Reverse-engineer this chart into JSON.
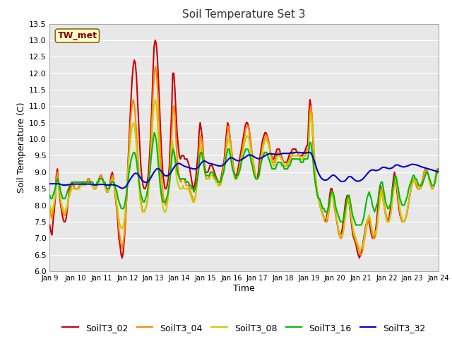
{
  "title": "Soil Temperature Set 3",
  "xlabel": "Time",
  "ylabel": "Soil Temperature (C)",
  "ylim": [
    6.0,
    13.5
  ],
  "yticks": [
    6.0,
    6.5,
    7.0,
    7.5,
    8.0,
    8.5,
    9.0,
    9.5,
    10.0,
    10.5,
    11.0,
    11.5,
    12.0,
    12.5,
    13.0,
    13.5
  ],
  "x_labels": [
    "Jan 9",
    "Jan 10",
    "Jan 11",
    "Jan 12",
    "Jan 13",
    "Jan 14",
    "Jan 15",
    "Jan 16",
    "Jan 17",
    "Jan 18",
    "Jan 19",
    "Jan 20",
    "Jan 21",
    "Jan 22",
    "Jan 23",
    "Jan 24"
  ],
  "annotation": "TW_met",
  "annotation_color": "#8b0000",
  "annotation_bg": "#ffffcc",
  "annotation_edge": "#8b6914",
  "fig_bg_color": "#ffffff",
  "plot_bg_color": "#e8e8e8",
  "grid_color": "#ffffff",
  "colors": {
    "SoilT3_02": "#cc0000",
    "SoilT3_04": "#ff8800",
    "SoilT3_08": "#cccc00",
    "SoilT3_16": "#00bb00",
    "SoilT3_32": "#0000cc"
  },
  "SoilT3_02": [
    7.4,
    7.2,
    7.1,
    7.5,
    7.8,
    8.2,
    8.9,
    9.1,
    8.7,
    8.3,
    8.0,
    7.8,
    7.6,
    7.5,
    7.5,
    7.6,
    7.9,
    8.2,
    8.5,
    8.6,
    8.7,
    8.6,
    8.6,
    8.5,
    8.5,
    8.5,
    8.5,
    8.6,
    8.6,
    8.6,
    8.7,
    8.7,
    8.6,
    8.7,
    8.7,
    8.8,
    8.8,
    8.7,
    8.6,
    8.6,
    8.5,
    8.5,
    8.5,
    8.6,
    8.7,
    8.8,
    8.9,
    8.9,
    8.8,
    8.7,
    8.6,
    8.5,
    8.4,
    8.4,
    8.5,
    8.7,
    8.9,
    9.0,
    8.8,
    8.5,
    8.2,
    7.9,
    7.5,
    7.0,
    6.8,
    6.5,
    6.4,
    6.6,
    7.0,
    7.5,
    8.2,
    9.0,
    9.8,
    10.5,
    11.2,
    11.8,
    12.2,
    12.4,
    12.3,
    11.9,
    11.2,
    10.5,
    9.8,
    9.2,
    8.8,
    8.6,
    8.5,
    8.5,
    8.6,
    8.7,
    9.0,
    9.5,
    10.2,
    11.0,
    12.0,
    12.8,
    13.0,
    12.9,
    12.5,
    11.8,
    11.0,
    10.2,
    9.5,
    9.0,
    8.7,
    8.5,
    8.5,
    8.6,
    8.8,
    9.2,
    10.0,
    10.8,
    12.0,
    12.0,
    11.5,
    10.8,
    10.2,
    9.8,
    9.5,
    9.4,
    9.5,
    9.5,
    9.5,
    9.4,
    9.4,
    9.4,
    9.3,
    9.2,
    9.0,
    8.8,
    8.6,
    8.5,
    8.6,
    8.8,
    9.2,
    9.5,
    10.2,
    10.5,
    10.3,
    10.0,
    9.5,
    9.2,
    9.0,
    9.0,
    9.0,
    9.1,
    9.2,
    9.2,
    9.2,
    9.1,
    9.0,
    8.9,
    8.8,
    8.7,
    8.7,
    8.7,
    8.8,
    9.0,
    9.2,
    9.4,
    9.8,
    10.2,
    10.5,
    10.4,
    10.1,
    9.8,
    9.5,
    9.2,
    9.0,
    8.9,
    8.9,
    9.0,
    9.2,
    9.4,
    9.6,
    9.8,
    10.0,
    10.2,
    10.4,
    10.5,
    10.5,
    10.4,
    10.2,
    9.9,
    9.6,
    9.3,
    9.1,
    8.9,
    8.8,
    8.8,
    9.0,
    9.3,
    9.6,
    9.8,
    10.0,
    10.1,
    10.2,
    10.2,
    10.1,
    10.0,
    9.8,
    9.6,
    9.5,
    9.4,
    9.4,
    9.5,
    9.6,
    9.7,
    9.7,
    9.7,
    9.6,
    9.5,
    9.4,
    9.3,
    9.3,
    9.3,
    9.3,
    9.4,
    9.5,
    9.6,
    9.6,
    9.7,
    9.7,
    9.7,
    9.7,
    9.6,
    9.6,
    9.5,
    9.5,
    9.5,
    9.5,
    9.6,
    9.6,
    9.7,
    9.8,
    9.8,
    10.8,
    11.2,
    11.0,
    10.5,
    9.8,
    9.2,
    8.8,
    8.5,
    8.3,
    8.2,
    8.0,
    7.9,
    7.8,
    7.7,
    7.6,
    7.5,
    7.6,
    7.8,
    8.0,
    8.3,
    8.5,
    8.5,
    8.3,
    8.0,
    7.8,
    7.6,
    7.4,
    7.2,
    7.1,
    7.1,
    7.2,
    7.4,
    7.7,
    8.0,
    8.2,
    8.3,
    8.2,
    8.0,
    7.7,
    7.4,
    7.1,
    7.0,
    6.9,
    6.8,
    6.6,
    6.5,
    6.4,
    6.5,
    6.6,
    6.8,
    7.0,
    7.2,
    7.4,
    7.5,
    7.6,
    7.5,
    7.3,
    7.1,
    7.0,
    7.0,
    7.1,
    7.3,
    7.6,
    8.0,
    8.4,
    8.6,
    8.5,
    8.3,
    8.1,
    7.9,
    7.7,
    7.6,
    7.5,
    7.6,
    7.8,
    8.1,
    8.5,
    8.8,
    9.0,
    8.8,
    8.5,
    8.2,
    7.9,
    7.7,
    7.6,
    7.5,
    7.5,
    7.5,
    7.6,
    7.7,
    7.9,
    8.1,
    8.3,
    8.5,
    8.7,
    8.8,
    8.8,
    8.7,
    8.6,
    8.5,
    8.5,
    8.5,
    8.6,
    8.7,
    8.8,
    9.0,
    9.1,
    9.1,
    9.0,
    8.9,
    8.7,
    8.6,
    8.5,
    8.5,
    8.6,
    8.8,
    9.0,
    9.1,
    9.1
  ],
  "SoilT3_04": [
    7.9,
    7.7,
    7.6,
    7.8,
    8.0,
    8.3,
    8.8,
    9.0,
    8.7,
    8.4,
    8.1,
    7.9,
    7.8,
    7.7,
    7.7,
    7.8,
    8.0,
    8.2,
    8.4,
    8.5,
    8.6,
    8.6,
    8.6,
    8.5,
    8.5,
    8.5,
    8.5,
    8.6,
    8.6,
    8.6,
    8.7,
    8.7,
    8.6,
    8.7,
    8.7,
    8.8,
    8.8,
    8.7,
    8.6,
    8.6,
    8.5,
    8.5,
    8.5,
    8.6,
    8.7,
    8.8,
    8.9,
    8.9,
    8.8,
    8.7,
    8.6,
    8.5,
    8.4,
    8.4,
    8.5,
    8.7,
    8.8,
    8.9,
    8.8,
    8.5,
    8.2,
    7.9,
    7.6,
    7.2,
    7.0,
    6.8,
    6.7,
    6.9,
    7.2,
    7.7,
    8.3,
    9.0,
    9.7,
    10.3,
    10.8,
    11.1,
    11.2,
    11.0,
    10.6,
    10.1,
    9.5,
    8.9,
    8.4,
    8.1,
    7.9,
    7.8,
    7.8,
    7.9,
    8.0,
    8.2,
    8.6,
    9.2,
    9.9,
    10.7,
    11.5,
    12.0,
    12.2,
    12.0,
    11.5,
    10.8,
    10.0,
    9.2,
    8.7,
    8.3,
    8.1,
    8.0,
    8.1,
    8.2,
    8.5,
    8.9,
    9.5,
    10.3,
    11.0,
    11.0,
    10.5,
    9.8,
    9.3,
    9.0,
    8.8,
    8.7,
    8.8,
    8.8,
    8.8,
    8.7,
    8.6,
    8.6,
    8.6,
    8.5,
    8.4,
    8.3,
    8.2,
    8.1,
    8.2,
    8.4,
    8.8,
    9.1,
    9.8,
    10.1,
    10.0,
    9.7,
    9.3,
    9.0,
    8.8,
    8.8,
    8.8,
    8.9,
    9.0,
    9.0,
    9.0,
    8.9,
    8.8,
    8.8,
    8.7,
    8.6,
    8.6,
    8.7,
    8.8,
    9.0,
    9.2,
    9.4,
    9.7,
    10.1,
    10.4,
    10.3,
    10.0,
    9.7,
    9.4,
    9.1,
    8.9,
    8.8,
    8.8,
    8.9,
    9.1,
    9.3,
    9.5,
    9.7,
    9.9,
    10.1,
    10.3,
    10.4,
    10.4,
    10.3,
    10.1,
    9.8,
    9.5,
    9.3,
    9.1,
    8.9,
    8.8,
    8.8,
    8.9,
    9.2,
    9.5,
    9.7,
    9.9,
    10.0,
    10.1,
    10.1,
    10.0,
    9.9,
    9.7,
    9.5,
    9.4,
    9.3,
    9.3,
    9.4,
    9.5,
    9.6,
    9.6,
    9.6,
    9.5,
    9.4,
    9.3,
    9.2,
    9.2,
    9.2,
    9.3,
    9.3,
    9.4,
    9.5,
    9.5,
    9.6,
    9.6,
    9.6,
    9.6,
    9.6,
    9.5,
    9.5,
    9.4,
    9.4,
    9.4,
    9.5,
    9.5,
    9.6,
    9.7,
    9.7,
    10.7,
    11.0,
    10.8,
    10.3,
    9.7,
    9.1,
    8.7,
    8.4,
    8.2,
    8.1,
    7.9,
    7.8,
    7.7,
    7.6,
    7.5,
    7.5,
    7.5,
    7.7,
    7.9,
    8.2,
    8.4,
    8.4,
    8.2,
    7.9,
    7.7,
    7.5,
    7.3,
    7.1,
    7.0,
    7.0,
    7.1,
    7.3,
    7.6,
    7.9,
    8.1,
    8.2,
    8.1,
    7.9,
    7.6,
    7.3,
    7.1,
    7.0,
    6.9,
    6.8,
    6.7,
    6.6,
    6.5,
    6.5,
    6.6,
    6.8,
    7.0,
    7.2,
    7.4,
    7.5,
    7.6,
    7.5,
    7.3,
    7.1,
    7.0,
    7.0,
    7.1,
    7.3,
    7.6,
    8.0,
    8.3,
    8.5,
    8.4,
    8.2,
    8.0,
    7.8,
    7.6,
    7.5,
    7.5,
    7.6,
    7.8,
    8.1,
    8.4,
    8.7,
    8.9,
    8.7,
    8.4,
    8.1,
    7.8,
    7.6,
    7.5,
    7.5,
    7.5,
    7.6,
    7.7,
    7.9,
    8.1,
    8.3,
    8.5,
    8.7,
    8.8,
    8.8,
    8.7,
    8.6,
    8.5,
    8.5,
    8.5,
    8.6,
    8.7,
    8.8,
    9.0,
    9.1,
    9.1,
    9.0,
    8.9,
    8.7,
    8.6,
    8.5,
    8.5,
    8.6,
    8.8,
    9.0,
    9.1,
    9.1
  ],
  "SoilT3_08": [
    8.0,
    7.9,
    7.8,
    7.9,
    8.1,
    8.3,
    8.6,
    8.8,
    8.6,
    8.4,
    8.2,
    8.0,
    7.9,
    7.8,
    7.8,
    7.9,
    8.0,
    8.2,
    8.3,
    8.4,
    8.5,
    8.5,
    8.5,
    8.5,
    8.5,
    8.5,
    8.5,
    8.5,
    8.6,
    8.6,
    8.6,
    8.7,
    8.6,
    8.7,
    8.7,
    8.7,
    8.7,
    8.7,
    8.6,
    8.6,
    8.5,
    8.5,
    8.5,
    8.6,
    8.7,
    8.7,
    8.8,
    8.8,
    8.8,
    8.7,
    8.6,
    8.5,
    8.4,
    8.4,
    8.5,
    8.6,
    8.7,
    8.8,
    8.7,
    8.5,
    8.3,
    8.0,
    7.8,
    7.5,
    7.4,
    7.3,
    7.3,
    7.4,
    7.6,
    8.0,
    8.5,
    9.0,
    9.5,
    9.9,
    10.2,
    10.4,
    10.5,
    10.4,
    10.1,
    9.7,
    9.2,
    8.7,
    8.2,
    8.0,
    7.8,
    7.8,
    7.8,
    7.9,
    8.0,
    8.2,
    8.6,
    9.1,
    9.6,
    10.2,
    10.8,
    11.1,
    11.2,
    11.0,
    10.5,
    9.8,
    9.1,
    8.5,
    8.1,
    7.9,
    7.8,
    7.8,
    7.9,
    8.1,
    8.4,
    8.8,
    9.4,
    10.0,
    9.8,
    9.5,
    9.2,
    8.9,
    8.7,
    8.6,
    8.5,
    8.5,
    8.5,
    8.6,
    8.5,
    8.5,
    8.5,
    8.5,
    8.5,
    8.4,
    8.3,
    8.2,
    8.1,
    8.1,
    8.2,
    8.4,
    8.7,
    9.0,
    9.5,
    9.8,
    9.7,
    9.5,
    9.2,
    9.0,
    8.8,
    8.8,
    8.8,
    8.8,
    8.9,
    8.9,
    8.9,
    8.8,
    8.8,
    8.7,
    8.7,
    8.6,
    8.6,
    8.6,
    8.7,
    8.9,
    9.1,
    9.2,
    9.5,
    9.8,
    10.0,
    10.0,
    9.8,
    9.5,
    9.2,
    9.0,
    8.8,
    8.8,
    8.8,
    8.9,
    9.0,
    9.2,
    9.4,
    9.6,
    9.7,
    9.9,
    10.0,
    10.1,
    10.1,
    10.0,
    9.8,
    9.6,
    9.4,
    9.2,
    9.0,
    8.9,
    8.8,
    8.8,
    8.9,
    9.1,
    9.4,
    9.6,
    9.8,
    9.9,
    10.0,
    10.0,
    9.9,
    9.8,
    9.6,
    9.4,
    9.3,
    9.2,
    9.2,
    9.3,
    9.4,
    9.5,
    9.5,
    9.5,
    9.4,
    9.4,
    9.3,
    9.2,
    9.2,
    9.2,
    9.2,
    9.3,
    9.3,
    9.4,
    9.5,
    9.5,
    9.5,
    9.5,
    9.5,
    9.5,
    9.5,
    9.5,
    9.4,
    9.4,
    9.4,
    9.5,
    9.5,
    9.5,
    9.6,
    9.6,
    10.5,
    10.8,
    10.6,
    10.1,
    9.5,
    9.0,
    8.6,
    8.3,
    8.2,
    8.1,
    7.9,
    7.8,
    7.7,
    7.6,
    7.6,
    7.6,
    7.6,
    7.8,
    8.0,
    8.2,
    8.4,
    8.3,
    8.1,
    7.9,
    7.7,
    7.5,
    7.3,
    7.2,
    7.1,
    7.1,
    7.1,
    7.3,
    7.5,
    7.8,
    8.1,
    8.2,
    8.1,
    7.9,
    7.6,
    7.4,
    7.2,
    7.1,
    7.0,
    6.9,
    6.8,
    6.7,
    6.7,
    6.7,
    6.7,
    6.9,
    7.1,
    7.3,
    7.5,
    7.6,
    7.7,
    7.6,
    7.4,
    7.2,
    7.1,
    7.1,
    7.2,
    7.3,
    7.6,
    7.9,
    8.2,
    8.4,
    8.3,
    8.1,
    7.9,
    7.7,
    7.5,
    7.5,
    7.5,
    7.6,
    7.8,
    8.1,
    8.4,
    8.7,
    8.8,
    8.7,
    8.4,
    8.1,
    7.9,
    7.7,
    7.6,
    7.5,
    7.5,
    7.6,
    7.7,
    7.9,
    8.1,
    8.3,
    8.5,
    8.6,
    8.7,
    8.8,
    8.7,
    8.7,
    8.6,
    8.5,
    8.5,
    8.5,
    8.6,
    8.7,
    8.8,
    9.0,
    9.0,
    9.0,
    8.9,
    8.7,
    8.6,
    8.5,
    8.5,
    8.6,
    8.8,
    9.0,
    9.0,
    9.0
  ],
  "SoilT3_16": [
    8.3,
    8.2,
    8.2,
    8.3,
    8.4,
    8.5,
    8.7,
    8.8,
    8.7,
    8.6,
    8.4,
    8.3,
    8.2,
    8.2,
    8.2,
    8.3,
    8.4,
    8.5,
    8.6,
    8.6,
    8.7,
    8.7,
    8.7,
    8.7,
    8.7,
    8.7,
    8.7,
    8.7,
    8.7,
    8.7,
    8.7,
    8.7,
    8.7,
    8.7,
    8.7,
    8.7,
    8.7,
    8.7,
    8.7,
    8.7,
    8.6,
    8.6,
    8.6,
    8.7,
    8.7,
    8.8,
    8.8,
    8.8,
    8.8,
    8.7,
    8.7,
    8.6,
    8.5,
    8.5,
    8.5,
    8.6,
    8.7,
    8.7,
    8.7,
    8.6,
    8.5,
    8.4,
    8.2,
    8.1,
    8.0,
    7.9,
    7.9,
    7.9,
    8.0,
    8.2,
    8.4,
    8.7,
    9.0,
    9.2,
    9.4,
    9.5,
    9.6,
    9.6,
    9.5,
    9.3,
    9.0,
    8.7,
    8.5,
    8.3,
    8.2,
    8.1,
    8.1,
    8.2,
    8.3,
    8.5,
    8.7,
    9.0,
    9.4,
    9.7,
    10.0,
    10.2,
    10.1,
    9.9,
    9.5,
    9.1,
    8.7,
    8.4,
    8.2,
    8.1,
    8.1,
    8.1,
    8.2,
    8.3,
    8.5,
    8.7,
    9.1,
    9.5,
    9.7,
    9.6,
    9.4,
    9.2,
    9.0,
    8.9,
    8.8,
    8.8,
    8.8,
    8.8,
    8.8,
    8.8,
    8.7,
    8.7,
    8.7,
    8.6,
    8.6,
    8.5,
    8.5,
    8.4,
    8.5,
    8.6,
    8.8,
    9.0,
    9.4,
    9.6,
    9.6,
    9.4,
    9.2,
    9.0,
    8.9,
    8.9,
    8.9,
    8.9,
    9.0,
    9.0,
    9.0,
    8.9,
    8.9,
    8.8,
    8.8,
    8.7,
    8.7,
    8.7,
    8.8,
    8.9,
    9.0,
    9.2,
    9.4,
    9.6,
    9.7,
    9.7,
    9.5,
    9.3,
    9.1,
    9.0,
    8.9,
    8.8,
    8.9,
    8.9,
    9.0,
    9.1,
    9.3,
    9.4,
    9.5,
    9.6,
    9.7,
    9.7,
    9.7,
    9.6,
    9.5,
    9.3,
    9.2,
    9.0,
    8.9,
    8.8,
    8.8,
    8.8,
    8.9,
    9.1,
    9.3,
    9.4,
    9.5,
    9.6,
    9.6,
    9.6,
    9.5,
    9.4,
    9.3,
    9.2,
    9.1,
    9.1,
    9.1,
    9.1,
    9.2,
    9.3,
    9.3,
    9.3,
    9.3,
    9.2,
    9.2,
    9.1,
    9.1,
    9.1,
    9.1,
    9.2,
    9.2,
    9.3,
    9.4,
    9.4,
    9.4,
    9.4,
    9.4,
    9.4,
    9.4,
    9.4,
    9.3,
    9.3,
    9.3,
    9.4,
    9.4,
    9.4,
    9.4,
    9.5,
    9.9,
    9.9,
    9.7,
    9.4,
    9.0,
    8.7,
    8.5,
    8.3,
    8.2,
    8.2,
    8.1,
    8.0,
    7.9,
    7.9,
    7.8,
    7.8,
    7.8,
    7.9,
    8.1,
    8.3,
    8.4,
    8.4,
    8.3,
    8.1,
    7.9,
    7.8,
    7.7,
    7.6,
    7.5,
    7.5,
    7.5,
    7.6,
    7.8,
    8.0,
    8.2,
    8.3,
    8.3,
    8.1,
    7.9,
    7.7,
    7.6,
    7.5,
    7.4,
    7.4,
    7.4,
    7.4,
    7.4,
    7.4,
    7.5,
    7.6,
    7.8,
    8.0,
    8.2,
    8.3,
    8.4,
    8.3,
    8.2,
    8.0,
    7.9,
    7.8,
    7.9,
    8.0,
    8.1,
    8.4,
    8.6,
    8.7,
    8.7,
    8.5,
    8.3,
    8.1,
    8.0,
    7.9,
    7.9,
    8.0,
    8.1,
    8.4,
    8.6,
    8.8,
    8.9,
    8.8,
    8.6,
    8.4,
    8.2,
    8.1,
    8.0,
    8.0,
    8.0,
    8.1,
    8.2,
    8.3,
    8.5,
    8.6,
    8.7,
    8.8,
    8.9,
    8.9,
    8.8,
    8.8,
    8.7,
    8.6,
    8.6,
    8.6,
    8.6,
    8.7,
    8.8,
    8.9,
    9.0,
    9.0,
    8.9,
    8.8,
    8.7,
    8.6,
    8.6,
    8.6,
    8.7,
    8.9,
    9.0,
    9.1
  ],
  "SoilT3_32": [
    8.65,
    8.65,
    8.65,
    8.65,
    8.65,
    8.65,
    8.65,
    8.65,
    8.65,
    8.64,
    8.63,
    8.62,
    8.61,
    8.61,
    8.61,
    8.61,
    8.62,
    8.62,
    8.63,
    8.63,
    8.64,
    8.64,
    8.64,
    8.64,
    8.64,
    8.64,
    8.64,
    8.64,
    8.64,
    8.64,
    8.64,
    8.64,
    8.64,
    8.64,
    8.64,
    8.64,
    8.64,
    8.64,
    8.63,
    8.63,
    8.62,
    8.62,
    8.62,
    8.62,
    8.63,
    8.63,
    8.63,
    8.63,
    8.63,
    8.63,
    8.62,
    8.62,
    8.61,
    8.61,
    8.61,
    8.62,
    8.62,
    8.62,
    8.62,
    8.61,
    8.6,
    8.59,
    8.57,
    8.55,
    8.53,
    8.52,
    8.51,
    8.52,
    8.54,
    8.57,
    8.62,
    8.67,
    8.73,
    8.79,
    8.84,
    8.89,
    8.93,
    8.96,
    8.97,
    8.96,
    8.93,
    8.89,
    8.84,
    8.79,
    8.75,
    8.72,
    8.7,
    8.69,
    8.7,
    8.72,
    8.75,
    8.8,
    8.86,
    8.92,
    8.98,
    9.03,
    9.07,
    9.1,
    9.11,
    9.1,
    9.07,
    9.03,
    8.98,
    8.94,
    8.91,
    8.89,
    8.89,
    8.9,
    8.92,
    8.95,
    9.0,
    9.06,
    9.12,
    9.17,
    9.21,
    9.24,
    9.26,
    9.27,
    9.26,
    9.24,
    9.22,
    9.2,
    9.18,
    9.17,
    9.16,
    9.15,
    9.14,
    9.13,
    9.12,
    9.11,
    9.1,
    9.1,
    9.1,
    9.11,
    9.14,
    9.17,
    9.22,
    9.27,
    9.31,
    9.33,
    9.34,
    9.33,
    9.31,
    9.29,
    9.27,
    9.26,
    9.26,
    9.25,
    9.24,
    9.23,
    9.22,
    9.21,
    9.2,
    9.19,
    9.19,
    9.19,
    9.2,
    9.22,
    9.25,
    9.28,
    9.32,
    9.36,
    9.4,
    9.43,
    9.44,
    9.44,
    9.42,
    9.4,
    9.38,
    9.36,
    9.35,
    9.35,
    9.36,
    9.37,
    9.39,
    9.41,
    9.43,
    9.45,
    9.48,
    9.5,
    9.52,
    9.52,
    9.52,
    9.51,
    9.49,
    9.47,
    9.45,
    9.43,
    9.42,
    9.41,
    9.41,
    9.42,
    9.44,
    9.46,
    9.48,
    9.5,
    9.52,
    9.54,
    9.55,
    9.56,
    9.56,
    9.56,
    9.55,
    9.55,
    9.54,
    9.54,
    9.54,
    9.54,
    9.55,
    9.55,
    9.56,
    9.57,
    9.57,
    9.57,
    9.57,
    9.57,
    9.57,
    9.57,
    9.58,
    9.58,
    9.58,
    9.59,
    9.59,
    9.6,
    9.6,
    9.6,
    9.6,
    9.59,
    9.59,
    9.59,
    9.58,
    9.58,
    9.59,
    9.59,
    9.6,
    9.6,
    9.6,
    9.55,
    9.48,
    9.4,
    9.3,
    9.19,
    9.09,
    9.0,
    8.93,
    8.87,
    8.82,
    8.79,
    8.77,
    8.76,
    8.76,
    8.77,
    8.79,
    8.82,
    8.85,
    8.88,
    8.91,
    8.91,
    8.9,
    8.87,
    8.84,
    8.8,
    8.77,
    8.74,
    8.72,
    8.72,
    8.72,
    8.73,
    8.76,
    8.8,
    8.84,
    8.87,
    8.87,
    8.86,
    8.83,
    8.8,
    8.77,
    8.75,
    8.73,
    8.73,
    8.73,
    8.74,
    8.76,
    8.78,
    8.81,
    8.85,
    8.89,
    8.93,
    8.97,
    9.01,
    9.04,
    9.06,
    9.07,
    9.07,
    9.06,
    9.05,
    9.05,
    9.06,
    9.07,
    9.09,
    9.12,
    9.14,
    9.15,
    9.15,
    9.14,
    9.13,
    9.12,
    9.11,
    9.11,
    9.12,
    9.13,
    9.15,
    9.18,
    9.21,
    9.22,
    9.22,
    9.21,
    9.19,
    9.18,
    9.17,
    9.16,
    9.16,
    9.17,
    9.18,
    9.19,
    9.2,
    9.22,
    9.23,
    9.24,
    9.24,
    9.23,
    9.23,
    9.22,
    9.21,
    9.2,
    9.19,
    9.17,
    9.16,
    9.15,
    9.14,
    9.13,
    9.12,
    9.11,
    9.1,
    9.09,
    9.08,
    9.07,
    9.06,
    9.05,
    9.04,
    9.03,
    9.02,
    9.01
  ]
}
